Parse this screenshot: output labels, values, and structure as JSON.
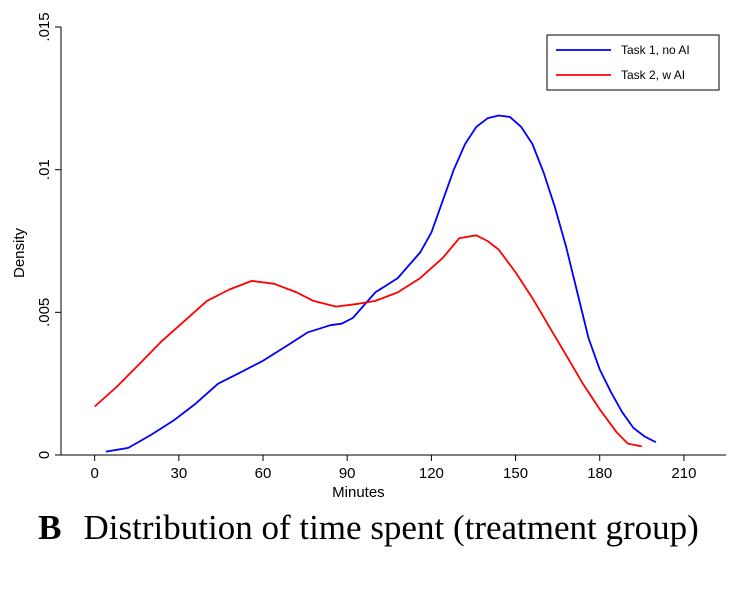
{
  "caption": {
    "panel_letter": "B",
    "text": "Distribution of time spent (treatment group)"
  },
  "chart_data": {
    "type": "line",
    "xlabel": "Minutes",
    "ylabel": "Density",
    "xlim": [
      -12,
      225
    ],
    "ylim": [
      0,
      0.015
    ],
    "x_ticks": [
      0,
      30,
      60,
      90,
      120,
      150,
      180,
      210
    ],
    "x_tick_labels": [
      "0",
      "30",
      "60",
      "90",
      "120",
      "150",
      "180",
      "210"
    ],
    "y_ticks": [
      0,
      0.005,
      0.01,
      0.015
    ],
    "y_tick_labels": [
      "0",
      ".005",
      ".01",
      ".015"
    ],
    "legend_position": "top-right",
    "series": [
      {
        "name": "Task 1, no AI",
        "color": "#0000ff",
        "x": [
          4,
          12,
          20,
          28,
          36,
          44,
          52,
          60,
          68,
          76,
          84,
          88,
          92,
          100,
          108,
          116,
          120,
          124,
          128,
          132,
          136,
          140,
          144,
          148,
          152,
          156,
          160,
          164,
          168,
          172,
          176,
          180,
          184,
          188,
          192,
          196,
          200
        ],
        "y": [
          0.00012,
          0.00025,
          0.0007,
          0.0012,
          0.0018,
          0.0025,
          0.0029,
          0.0033,
          0.0038,
          0.0043,
          0.00455,
          0.0046,
          0.0048,
          0.0057,
          0.0062,
          0.0071,
          0.0078,
          0.0089,
          0.01,
          0.0109,
          0.0115,
          0.0118,
          0.0119,
          0.01185,
          0.0115,
          0.0109,
          0.0099,
          0.0087,
          0.0073,
          0.0057,
          0.0041,
          0.003,
          0.0022,
          0.0015,
          0.00095,
          0.00065,
          0.00045
        ]
      },
      {
        "name": "Task 2, w AI",
        "color": "#ff0000",
        "x": [
          0,
          8,
          16,
          24,
          32,
          40,
          48,
          56,
          64,
          72,
          78,
          86,
          94,
          100,
          108,
          116,
          124,
          130,
          136,
          140,
          144,
          150,
          156,
          162,
          168,
          174,
          180,
          186,
          190,
          195
        ],
        "y": [
          0.0017,
          0.0024,
          0.0032,
          0.004,
          0.0047,
          0.0054,
          0.0058,
          0.0061,
          0.006,
          0.0057,
          0.0054,
          0.0052,
          0.0053,
          0.0054,
          0.0057,
          0.0062,
          0.0069,
          0.0076,
          0.0077,
          0.0075,
          0.0072,
          0.0064,
          0.0055,
          0.0045,
          0.0035,
          0.0025,
          0.0016,
          0.0008,
          0.0004,
          0.0003
        ]
      }
    ]
  }
}
